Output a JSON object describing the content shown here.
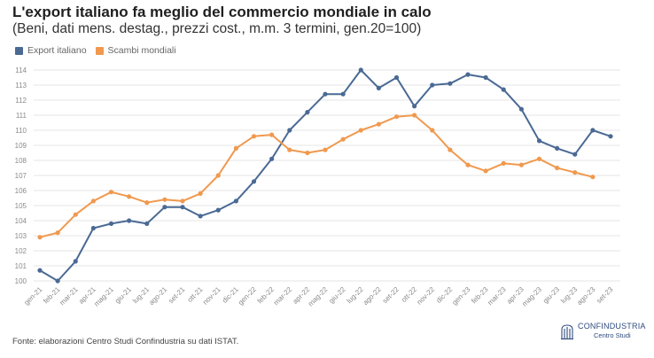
{
  "title": "L'export italiano fa meglio del commercio mondiale in calo",
  "subtitle": "(Beni, dati mens. destag., prezzi cost., m.m. 3 termini, gen.20=100)",
  "source": "Fonte: elaborazioni Centro Studi Confindustria su dati ISTAT.",
  "logo": {
    "name": "CONFINDUSTRIA",
    "sub": "Centro Studi"
  },
  "colors": {
    "export": "#4a6a94",
    "scambi": "#f0994e",
    "grid": "#e6e6e6",
    "tick": "#8a8a8a"
  },
  "chart_data": {
    "type": "line",
    "legend_position": "top-left",
    "ylim": [
      100,
      114
    ],
    "yticks": [
      100,
      101,
      102,
      103,
      104,
      105,
      106,
      107,
      108,
      109,
      110,
      111,
      112,
      113,
      114
    ],
    "categories": [
      "gen-21",
      "feb-21",
      "mar-21",
      "apr-21",
      "mag-21",
      "giu-21",
      "lug-21",
      "ago-21",
      "set-21",
      "ott-21",
      "nov-21",
      "dic-21",
      "gen-22",
      "feb-22",
      "mar-22",
      "apr-22",
      "mag-22",
      "giu-22",
      "lug-22",
      "ago-22",
      "set-22",
      "ott-22",
      "nov-22",
      "dic-22",
      "gen-23",
      "feb-23",
      "mar-23",
      "apr-23",
      "mag-23",
      "giu-23",
      "lug-23",
      "ago-23",
      "set-23"
    ],
    "series": [
      {
        "name": "Export italiano",
        "color_key": "export",
        "values": [
          100.7,
          100.0,
          101.3,
          103.5,
          103.8,
          104.0,
          103.8,
          104.9,
          104.9,
          104.3,
          104.7,
          105.3,
          106.6,
          108.1,
          110.0,
          111.2,
          112.4,
          112.4,
          114.0,
          112.8,
          113.5,
          111.6,
          113.0,
          113.1,
          113.7,
          113.5,
          112.7,
          111.4,
          109.3,
          108.8,
          108.4,
          110.0,
          109.6
        ]
      },
      {
        "name": "Scambi mondiali",
        "color_key": "scambi",
        "values": [
          102.9,
          103.2,
          104.4,
          105.3,
          105.9,
          105.6,
          105.2,
          105.4,
          105.3,
          105.8,
          107.0,
          108.8,
          109.6,
          109.7,
          108.7,
          108.5,
          108.7,
          109.4,
          110.0,
          110.4,
          110.9,
          111.0,
          110.0,
          108.7,
          107.7,
          107.3,
          107.8,
          107.7,
          108.1,
          107.5,
          107.2,
          106.9,
          null
        ]
      }
    ]
  }
}
